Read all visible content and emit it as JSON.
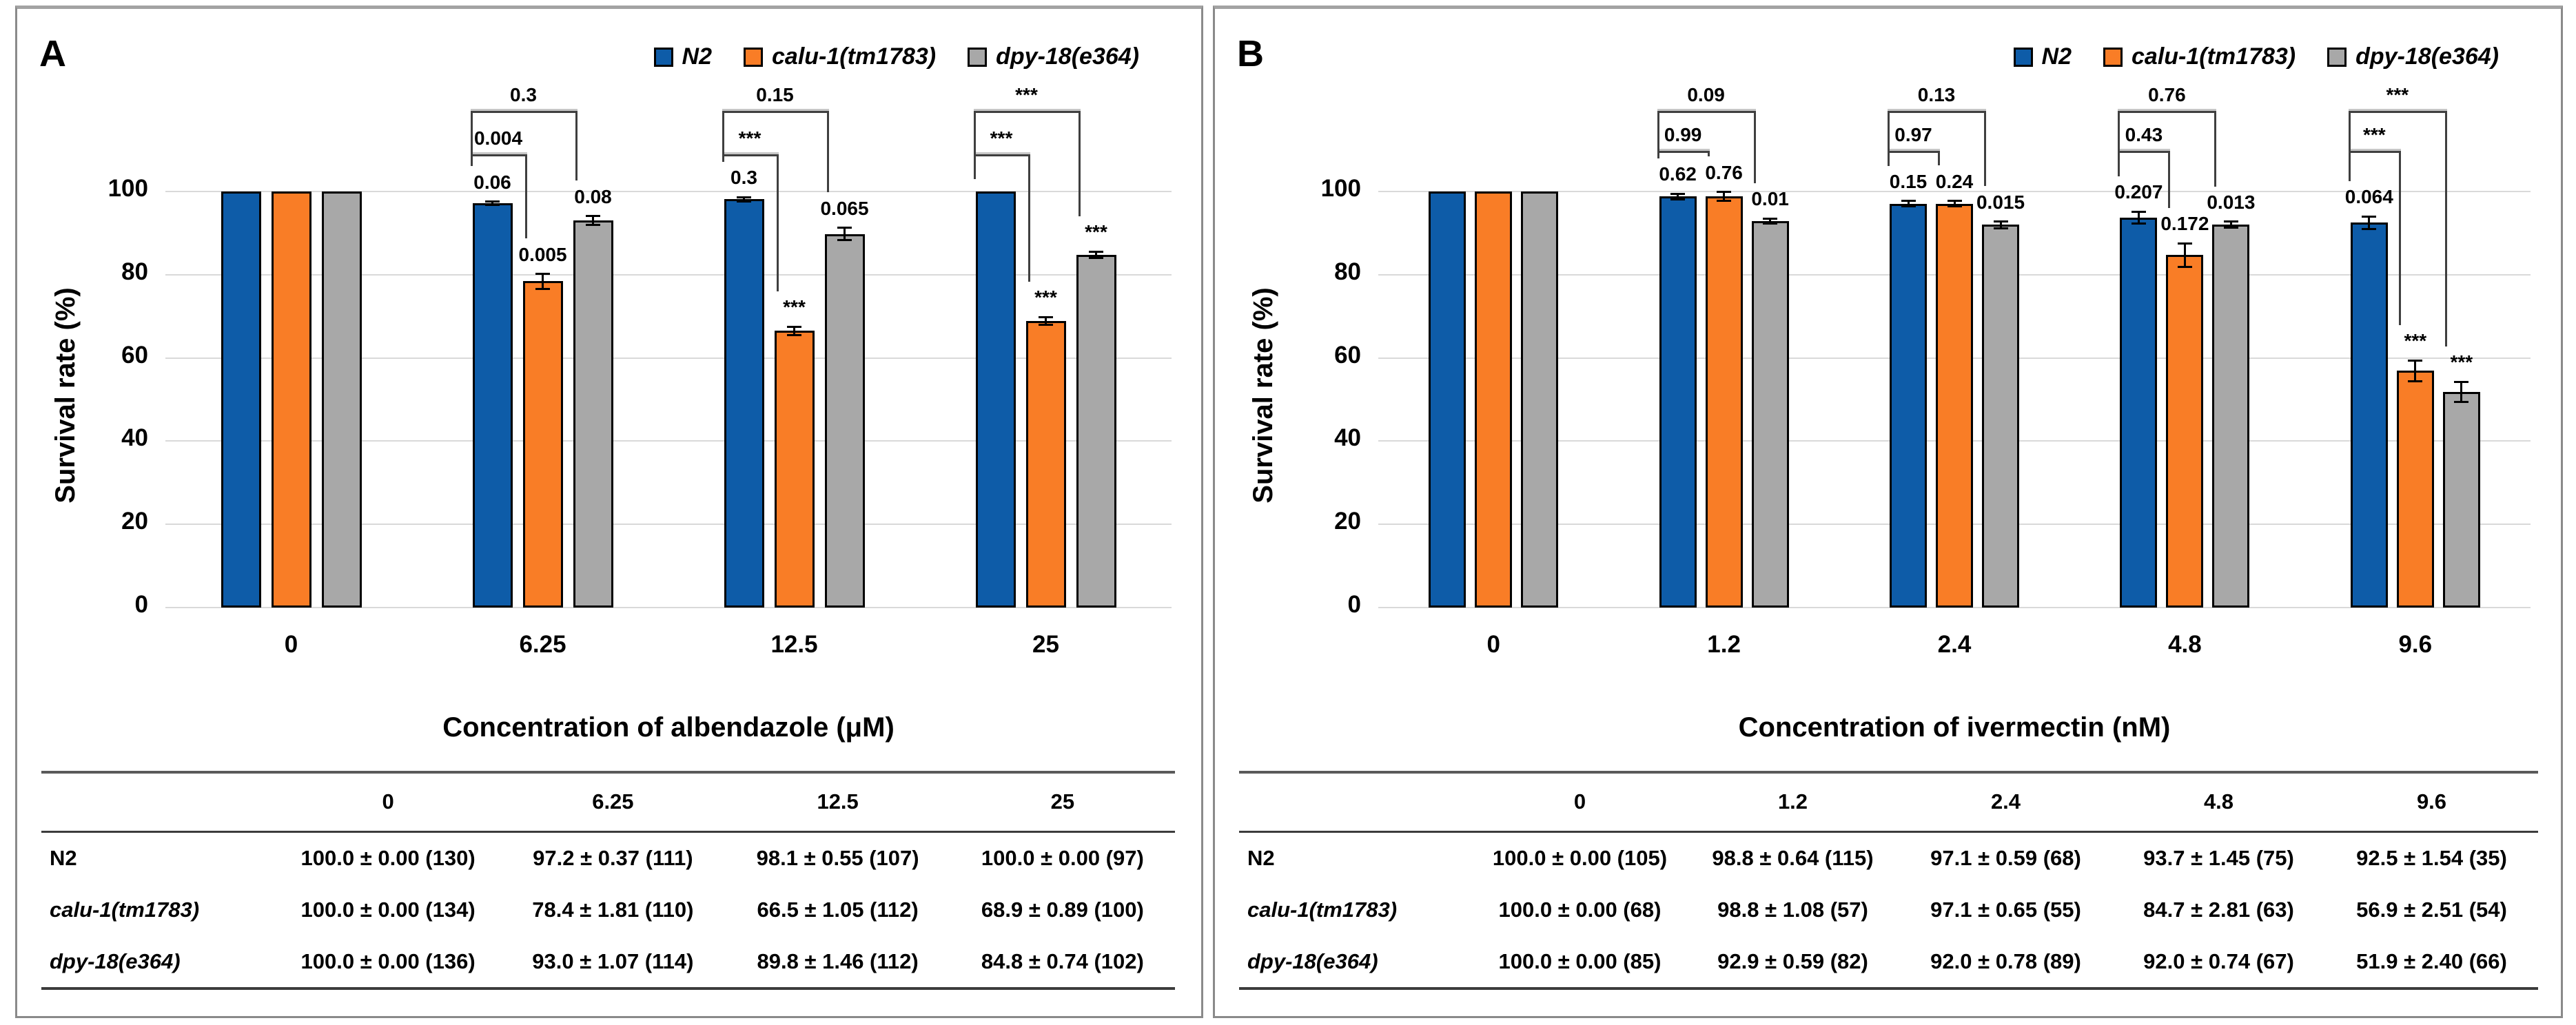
{
  "colors": {
    "series": [
      "#0E5CA8",
      "#F97D26",
      "#A8A8A8"
    ],
    "bar_border": "#000000",
    "gridline": "#D9D9D9",
    "bracket": "#3F3F3F",
    "panel_border": "#8A8A8A"
  },
  "chart_data": [
    {
      "type": "bar",
      "label": "A",
      "ylabel": "Survival rate (%)",
      "xlabel": "Concentration of albendazole (μM)",
      "ylim": [
        0,
        100
      ],
      "yticks": [
        0,
        20,
        40,
        60,
        80,
        100
      ],
      "grid": "horizontal",
      "legend_position": "top-right",
      "categories": [
        "0",
        "6.25",
        "12.5",
        "25"
      ],
      "legend": [
        "N2",
        "calu-1(tm1783)",
        "dpy-18(e364)"
      ],
      "series": [
        {
          "name": "N2",
          "values": [
            100.0,
            97.2,
            98.1,
            100.0
          ],
          "sem": [
            0.0,
            0.37,
            0.55,
            0.0
          ],
          "n": [
            130,
            111,
            107,
            97
          ]
        },
        {
          "name": "calu-1(tm1783)",
          "values": [
            100.0,
            78.4,
            66.5,
            68.9
          ],
          "sem": [
            0.0,
            1.81,
            1.05,
            0.89
          ],
          "n": [
            134,
            110,
            112,
            100
          ]
        },
        {
          "name": "dpy-18(e364)",
          "values": [
            100.0,
            93.0,
            89.8,
            84.8
          ],
          "sem": [
            0.0,
            1.07,
            1.46,
            0.74
          ],
          "n": [
            136,
            114,
            112,
            102
          ]
        }
      ],
      "bar_labels": [
        [
          null,
          null,
          null
        ],
        [
          "0.06",
          "0.005",
          "0.08"
        ],
        [
          "0.3",
          "***",
          "0.065"
        ],
        [
          null,
          "***",
          "***"
        ]
      ],
      "brackets": [
        [],
        [
          {
            "from": 0,
            "to": 1,
            "label": "0.004",
            "level": 108.5
          },
          {
            "from": 0,
            "to": 2,
            "label": "0.3",
            "level": 118.8
          }
        ],
        [
          {
            "from": 0,
            "to": 1,
            "label": "***",
            "level": 108.5
          },
          {
            "from": 0,
            "to": 2,
            "label": "0.15",
            "level": 118.8
          }
        ],
        [
          {
            "from": 0,
            "to": 1,
            "label": "***",
            "level": 108.5
          },
          {
            "from": 0,
            "to": 2,
            "label": "***",
            "level": 118.8
          }
        ]
      ],
      "table": {
        "header": [
          "",
          "0",
          "6.25",
          "12.5",
          "25"
        ],
        "rows": [
          {
            "label": "N2",
            "italic": false,
            "cells": [
              "100.0 ± 0.00 (130)",
              "97.2 ± 0.37 (111)",
              "98.1 ± 0.55 (107)",
              "100.0 ± 0.00 (97)"
            ]
          },
          {
            "label": "calu-1(tm1783)",
            "italic": true,
            "cells": [
              "100.0 ± 0.00 (134)",
              "78.4 ± 1.81 (110)",
              "66.5 ± 1.05 (112)",
              "68.9 ± 0.89 (100)"
            ]
          },
          {
            "label": "dpy-18(e364)",
            "italic": true,
            "cells": [
              "100.0 ± 0.00 (136)",
              "93.0 ± 1.07 (114)",
              "89.8 ± 1.46 (112)",
              "84.8 ± 0.74 (102)"
            ]
          }
        ]
      }
    },
    {
      "type": "bar",
      "label": "B",
      "ylabel": "Survival rate (%)",
      "xlabel": "Concentration of ivermectin (nM)",
      "ylim": [
        0,
        100
      ],
      "yticks": [
        0,
        20,
        40,
        60,
        80,
        100
      ],
      "grid": "horizontal",
      "legend_position": "top-right",
      "categories": [
        "0",
        "1.2",
        "2.4",
        "4.8",
        "9.6"
      ],
      "legend": [
        "N2",
        "calu-1(tm1783)",
        "dpy-18(e364)"
      ],
      "series": [
        {
          "name": "N2",
          "values": [
            100.0,
            98.8,
            97.1,
            93.7,
            92.5
          ],
          "sem": [
            0.0,
            0.64,
            0.59,
            1.45,
            1.54
          ],
          "n": [
            105,
            115,
            68,
            75,
            35
          ]
        },
        {
          "name": "calu-1(tm1783)",
          "values": [
            100.0,
            98.8,
            97.1,
            84.7,
            56.9
          ],
          "sem": [
            0.0,
            1.08,
            0.65,
            2.81,
            2.51
          ],
          "n": [
            68,
            57,
            55,
            63,
            54
          ]
        },
        {
          "name": "dpy-18(e364)",
          "values": [
            100.0,
            92.9,
            92.0,
            92.0,
            51.9
          ],
          "sem": [
            0.0,
            0.59,
            0.78,
            0.74,
            2.4
          ],
          "n": [
            85,
            82,
            89,
            67,
            66
          ]
        }
      ],
      "bar_labels": [
        [
          null,
          null,
          null
        ],
        [
          "0.62",
          "0.76",
          "0.01"
        ],
        [
          "0.15",
          "0.24",
          "0.015"
        ],
        [
          "0.207",
          "0.172",
          "0.013"
        ],
        [
          "0.064",
          "***",
          "***"
        ]
      ],
      "brackets": [
        [],
        [
          {
            "from": 0,
            "to": 1,
            "label": "0.99",
            "level": 109.3
          },
          {
            "from": 0,
            "to": 2,
            "label": "0.09",
            "level": 118.8
          }
        ],
        [
          {
            "from": 0,
            "to": 1,
            "label": "0.97",
            "level": 109.3
          },
          {
            "from": 0,
            "to": 2,
            "label": "0.13",
            "level": 118.8
          }
        ],
        [
          {
            "from": 0,
            "to": 1,
            "label": "0.43",
            "level": 109.3
          },
          {
            "from": 0,
            "to": 2,
            "label": "0.76",
            "level": 118.8
          }
        ],
        [
          {
            "from": 0,
            "to": 1,
            "label": "***",
            "level": 109.3
          },
          {
            "from": 0,
            "to": 2,
            "label": "***",
            "level": 118.8
          }
        ]
      ],
      "table": {
        "header": [
          "",
          "0",
          "1.2",
          "2.4",
          "4.8",
          "9.6"
        ],
        "rows": [
          {
            "label": "N2",
            "italic": false,
            "cells": [
              "100.0 ± 0.00 (105)",
              "98.8 ± 0.64 (115)",
              "97.1 ± 0.59 (68)",
              "93.7 ± 1.45 (75)",
              "92.5 ± 1.54 (35)"
            ]
          },
          {
            "label": "calu-1(tm1783)",
            "italic": true,
            "cells": [
              "100.0 ± 0.00 (68)",
              "98.8 ± 1.08 (57)",
              "97.1 ± 0.65 (55)",
              "84.7 ± 2.81 (63)",
              "56.9 ± 2.51 (54)"
            ]
          },
          {
            "label": "dpy-18(e364)",
            "italic": true,
            "cells": [
              "100.0 ± 0.00 (85)",
              "92.9 ± 0.59 (82)",
              "92.0 ± 0.78 (89)",
              "92.0 ± 0.74 (67)",
              "51.9 ± 2.40 (66)"
            ]
          }
        ]
      }
    }
  ]
}
